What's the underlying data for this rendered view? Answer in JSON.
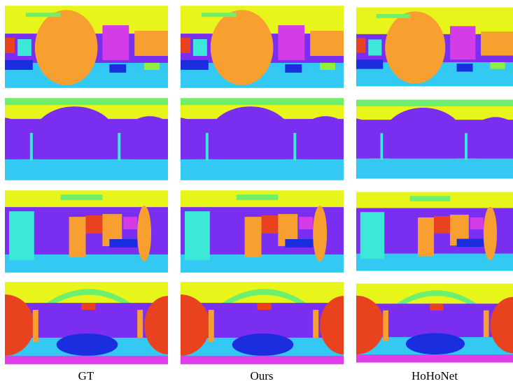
{
  "columns": [
    "GT",
    "Ours",
    "HoHoNet"
  ]
}
